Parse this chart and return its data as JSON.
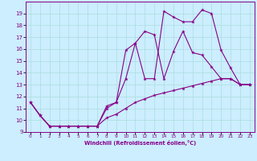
{
  "xlabel": "Windchill (Refroidissement éolien,°C)",
  "xlim": [
    -0.5,
    23.5
  ],
  "ylim": [
    9,
    20
  ],
  "yticks": [
    9,
    10,
    11,
    12,
    13,
    14,
    15,
    16,
    17,
    18,
    19
  ],
  "xticks": [
    0,
    1,
    2,
    3,
    4,
    5,
    6,
    7,
    8,
    9,
    10,
    11,
    12,
    13,
    14,
    15,
    16,
    17,
    18,
    19,
    20,
    21,
    22,
    23
  ],
  "bg_color": "#cceeff",
  "grid_color": "#aadddd",
  "line_color": "#880088",
  "line1_x": [
    0,
    1,
    2,
    3,
    4,
    5,
    6,
    7,
    8,
    9,
    10,
    11,
    12,
    13,
    14,
    15,
    16,
    17,
    18,
    19,
    20,
    21,
    22,
    23
  ],
  "line1_y": [
    11.5,
    10.4,
    9.5,
    9.5,
    9.5,
    9.5,
    9.5,
    9.5,
    11.2,
    11.5,
    15.9,
    16.5,
    13.5,
    13.5,
    19.2,
    18.7,
    18.3,
    18.3,
    19.3,
    19.0,
    15.9,
    14.4,
    13.0,
    13.0
  ],
  "line2_x": [
    0,
    1,
    2,
    3,
    4,
    5,
    6,
    7,
    8,
    9,
    10,
    11,
    12,
    13,
    14,
    15,
    16,
    17,
    18,
    19,
    20,
    21,
    22,
    23
  ],
  "line2_y": [
    11.5,
    10.4,
    9.5,
    9.5,
    9.5,
    9.5,
    9.5,
    9.5,
    11.0,
    11.5,
    13.5,
    16.5,
    17.5,
    17.2,
    13.5,
    15.8,
    17.5,
    15.7,
    15.5,
    14.5,
    13.5,
    13.5,
    13.0,
    13.0
  ],
  "line3_x": [
    0,
    1,
    2,
    3,
    4,
    5,
    6,
    7,
    8,
    9,
    10,
    11,
    12,
    13,
    14,
    15,
    16,
    17,
    18,
    19,
    20,
    21,
    22,
    23
  ],
  "line3_y": [
    11.5,
    10.4,
    9.5,
    9.5,
    9.5,
    9.5,
    9.5,
    9.5,
    10.2,
    10.5,
    11.0,
    11.5,
    11.8,
    12.1,
    12.3,
    12.5,
    12.7,
    12.9,
    13.1,
    13.3,
    13.5,
    13.5,
    13.0,
    13.0
  ]
}
